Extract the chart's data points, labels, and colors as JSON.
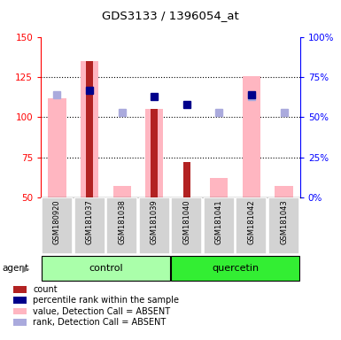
{
  "title": "GDS3133 / 1396054_at",
  "samples": [
    "GSM180920",
    "GSM181037",
    "GSM181038",
    "GSM181039",
    "GSM181040",
    "GSM181041",
    "GSM181042",
    "GSM181043"
  ],
  "groups": {
    "control": [
      0,
      1,
      2,
      3
    ],
    "quercetin": [
      4,
      5,
      6,
      7
    ]
  },
  "bar_values_pink": [
    112,
    135,
    57,
    105,
    50,
    62,
    126,
    57
  ],
  "bar_values_red": [
    null,
    135,
    null,
    105,
    72,
    null,
    null,
    null
  ],
  "blue_squares": [
    null,
    117,
    null,
    113,
    108,
    null,
    114,
    null
  ],
  "light_blue_squares": [
    114,
    null,
    103,
    null,
    null,
    103,
    113,
    103
  ],
  "ylim_left": [
    50,
    150
  ],
  "ylim_right": [
    0,
    100
  ],
  "yticks_left": [
    50,
    75,
    100,
    125,
    150
  ],
  "yticks_right": [
    0,
    25,
    50,
    75,
    100
  ],
  "ytick_labels_right": [
    "0%",
    "25%",
    "50%",
    "75%",
    "100%"
  ],
  "gridlines": [
    75,
    100,
    125
  ],
  "color_red": "#B22222",
  "color_pink": "#FFB6C1",
  "color_blue": "#00008B",
  "color_light_blue": "#AAAADD",
  "color_control_bg": "#AAFFAA",
  "color_quercetin_bg": "#33EE33",
  "color_sample_bg": "#D3D3D3",
  "pink_bar_width": 0.55,
  "red_bar_width": 0.22,
  "sq_size": 6
}
